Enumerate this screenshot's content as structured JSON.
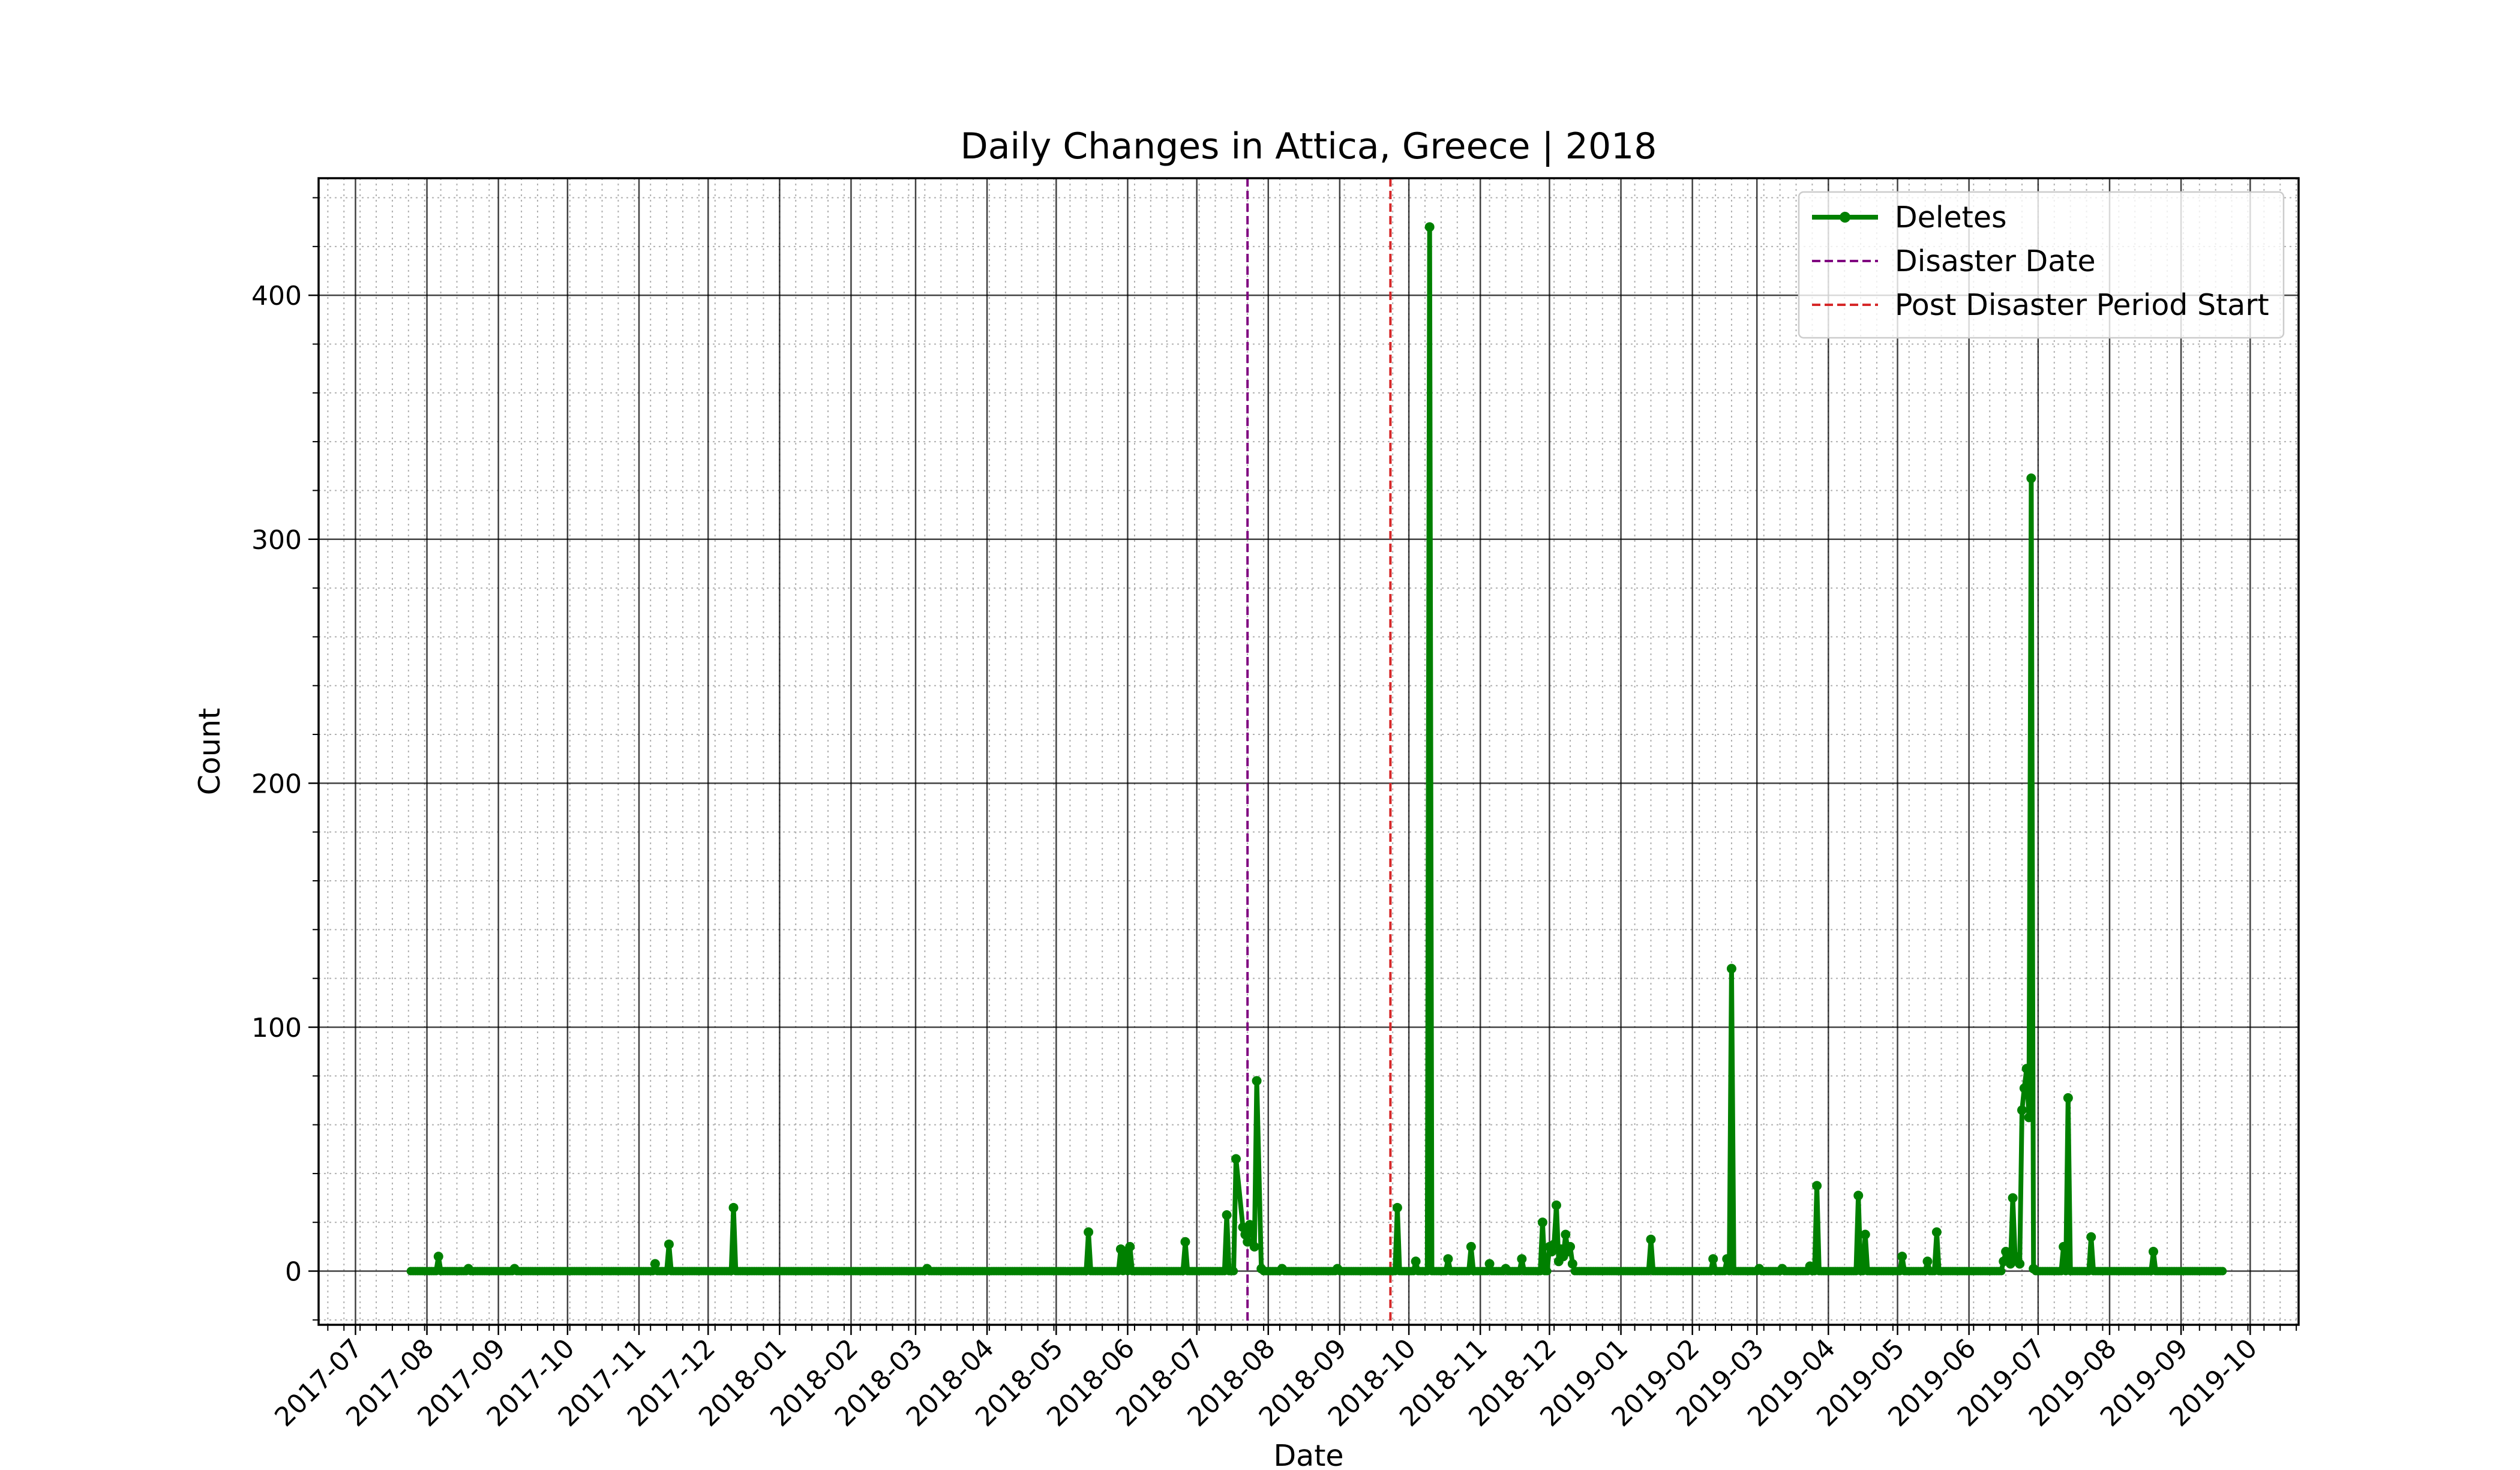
{
  "chart_data": {
    "type": "line",
    "title": "Daily Changes in Attica, Greece | 2018",
    "xlabel": "Date",
    "ylabel": "Count",
    "x_axis": {
      "type": "date",
      "range": [
        "2017-06-15",
        "2019-10-22"
      ],
      "tick_labels": [
        "2017-07",
        "2017-08",
        "2017-09",
        "2017-10",
        "2017-11",
        "2017-12",
        "2018-01",
        "2018-02",
        "2018-03",
        "2018-04",
        "2018-05",
        "2018-06",
        "2018-07",
        "2018-08",
        "2018-09",
        "2018-10",
        "2018-11",
        "2018-12",
        "2019-01",
        "2019-02",
        "2019-03",
        "2019-04",
        "2019-05",
        "2019-06",
        "2019-07",
        "2019-08",
        "2019-09",
        "2019-10"
      ],
      "tick_values": [
        "2017-07-01",
        "2017-08-01",
        "2017-09-01",
        "2017-10-01",
        "2017-11-01",
        "2017-12-01",
        "2018-01-01",
        "2018-02-01",
        "2018-03-01",
        "2018-04-01",
        "2018-05-01",
        "2018-06-01",
        "2018-07-01",
        "2018-08-01",
        "2018-09-01",
        "2018-10-01",
        "2018-11-01",
        "2018-12-01",
        "2019-01-01",
        "2019-02-01",
        "2019-03-01",
        "2019-04-01",
        "2019-05-01",
        "2019-06-01",
        "2019-07-01",
        "2019-08-01",
        "2019-09-01",
        "2019-10-01"
      ]
    },
    "y_axis": {
      "range": [
        -22,
        448
      ],
      "ticks": [
        0,
        100,
        200,
        300,
        400
      ],
      "tick_labels": [
        "0",
        "100",
        "200",
        "300",
        "400"
      ]
    },
    "grid": {
      "major": true,
      "minor": true
    },
    "legend": {
      "position": "top-right",
      "entries": [
        {
          "label": "Deletes",
          "style": "line-marker",
          "color": "#008000"
        },
        {
          "label": "Disaster Date",
          "style": "dashed",
          "color": "#800080"
        },
        {
          "label": "Post Disaster Period Start",
          "style": "dashed",
          "color": "#d62728"
        }
      ]
    },
    "vertical_lines": [
      {
        "label": "Disaster Date",
        "x": "2018-07-23",
        "color": "#800080"
      },
      {
        "label": "Post Disaster Period Start",
        "x": "2018-09-23",
        "color": "#d62728"
      }
    ],
    "series": [
      {
        "name": "Deletes",
        "color": "#008000",
        "baseline": 0,
        "range": [
          "2017-07-25",
          "2019-09-19"
        ],
        "gaps": [
          [
            "2018-07-18",
            "2018-07-29"
          ],
          [
            "2018-12-02",
            "2018-12-11"
          ],
          [
            "2019-06-17",
            "2019-06-29"
          ]
        ],
        "points": [
          {
            "x": "2017-08-06",
            "y": 6
          },
          {
            "x": "2017-08-19",
            "y": 1
          },
          {
            "x": "2017-09-08",
            "y": 1
          },
          {
            "x": "2017-11-08",
            "y": 3
          },
          {
            "x": "2017-11-14",
            "y": 11
          },
          {
            "x": "2017-12-12",
            "y": 26
          },
          {
            "x": "2018-03-06",
            "y": 1
          },
          {
            "x": "2018-05-15",
            "y": 16
          },
          {
            "x": "2018-05-29",
            "y": 9
          },
          {
            "x": "2018-05-31",
            "y": 8
          },
          {
            "x": "2018-06-02",
            "y": 10
          },
          {
            "x": "2018-06-26",
            "y": 12
          },
          {
            "x": "2018-07-14",
            "y": 23
          },
          {
            "x": "2018-07-18",
            "y": 46
          },
          {
            "x": "2018-07-21",
            "y": 18
          },
          {
            "x": "2018-07-22",
            "y": 15
          },
          {
            "x": "2018-07-23",
            "y": 12
          },
          {
            "x": "2018-07-24",
            "y": 19
          },
          {
            "x": "2018-07-25",
            "y": 16
          },
          {
            "x": "2018-07-26",
            "y": 10
          },
          {
            "x": "2018-07-27",
            "y": 78
          },
          {
            "x": "2018-07-29",
            "y": 1
          },
          {
            "x": "2018-08-07",
            "y": 1
          },
          {
            "x": "2018-08-31",
            "y": 1
          },
          {
            "x": "2018-09-26",
            "y": 26
          },
          {
            "x": "2018-10-04",
            "y": 4
          },
          {
            "x": "2018-10-10",
            "y": 428
          },
          {
            "x": "2018-10-18",
            "y": 5
          },
          {
            "x": "2018-10-28",
            "y": 10
          },
          {
            "x": "2018-11-05",
            "y": 3
          },
          {
            "x": "2018-11-12",
            "y": 1
          },
          {
            "x": "2018-11-19",
            "y": 5
          },
          {
            "x": "2018-11-28",
            "y": 20
          },
          {
            "x": "2018-12-01",
            "y": 10
          },
          {
            "x": "2018-12-02",
            "y": 8
          },
          {
            "x": "2018-12-03",
            "y": 11
          },
          {
            "x": "2018-12-04",
            "y": 27
          },
          {
            "x": "2018-12-05",
            "y": 4
          },
          {
            "x": "2018-12-06",
            "y": 9
          },
          {
            "x": "2018-12-07",
            "y": 6
          },
          {
            "x": "2018-12-08",
            "y": 15
          },
          {
            "x": "2018-12-09",
            "y": 8
          },
          {
            "x": "2018-12-10",
            "y": 10
          },
          {
            "x": "2018-12-11",
            "y": 3
          },
          {
            "x": "2019-01-14",
            "y": 13
          },
          {
            "x": "2019-02-10",
            "y": 5
          },
          {
            "x": "2019-02-16",
            "y": 5
          },
          {
            "x": "2019-02-18",
            "y": 124
          },
          {
            "x": "2019-03-02",
            "y": 1
          },
          {
            "x": "2019-03-12",
            "y": 1
          },
          {
            "x": "2019-03-24",
            "y": 2
          },
          {
            "x": "2019-03-27",
            "y": 35
          },
          {
            "x": "2019-04-14",
            "y": 31
          },
          {
            "x": "2019-04-17",
            "y": 15
          },
          {
            "x": "2019-05-03",
            "y": 6
          },
          {
            "x": "2019-05-14",
            "y": 4
          },
          {
            "x": "2019-05-18",
            "y": 16
          },
          {
            "x": "2019-06-16",
            "y": 4
          },
          {
            "x": "2019-06-17",
            "y": 8
          },
          {
            "x": "2019-06-18",
            "y": 5
          },
          {
            "x": "2019-06-19",
            "y": 3
          },
          {
            "x": "2019-06-20",
            "y": 30
          },
          {
            "x": "2019-06-21",
            "y": 6
          },
          {
            "x": "2019-06-22",
            "y": 4
          },
          {
            "x": "2019-06-23",
            "y": 3
          },
          {
            "x": "2019-06-24",
            "y": 66
          },
          {
            "x": "2019-06-25",
            "y": 75
          },
          {
            "x": "2019-06-26",
            "y": 83
          },
          {
            "x": "2019-06-27",
            "y": 63
          },
          {
            "x": "2019-06-28",
            "y": 325
          },
          {
            "x": "2019-06-29",
            "y": 1
          },
          {
            "x": "2019-07-12",
            "y": 10
          },
          {
            "x": "2019-07-14",
            "y": 71
          },
          {
            "x": "2019-07-24",
            "y": 14
          },
          {
            "x": "2019-08-20",
            "y": 8
          }
        ]
      }
    ]
  }
}
